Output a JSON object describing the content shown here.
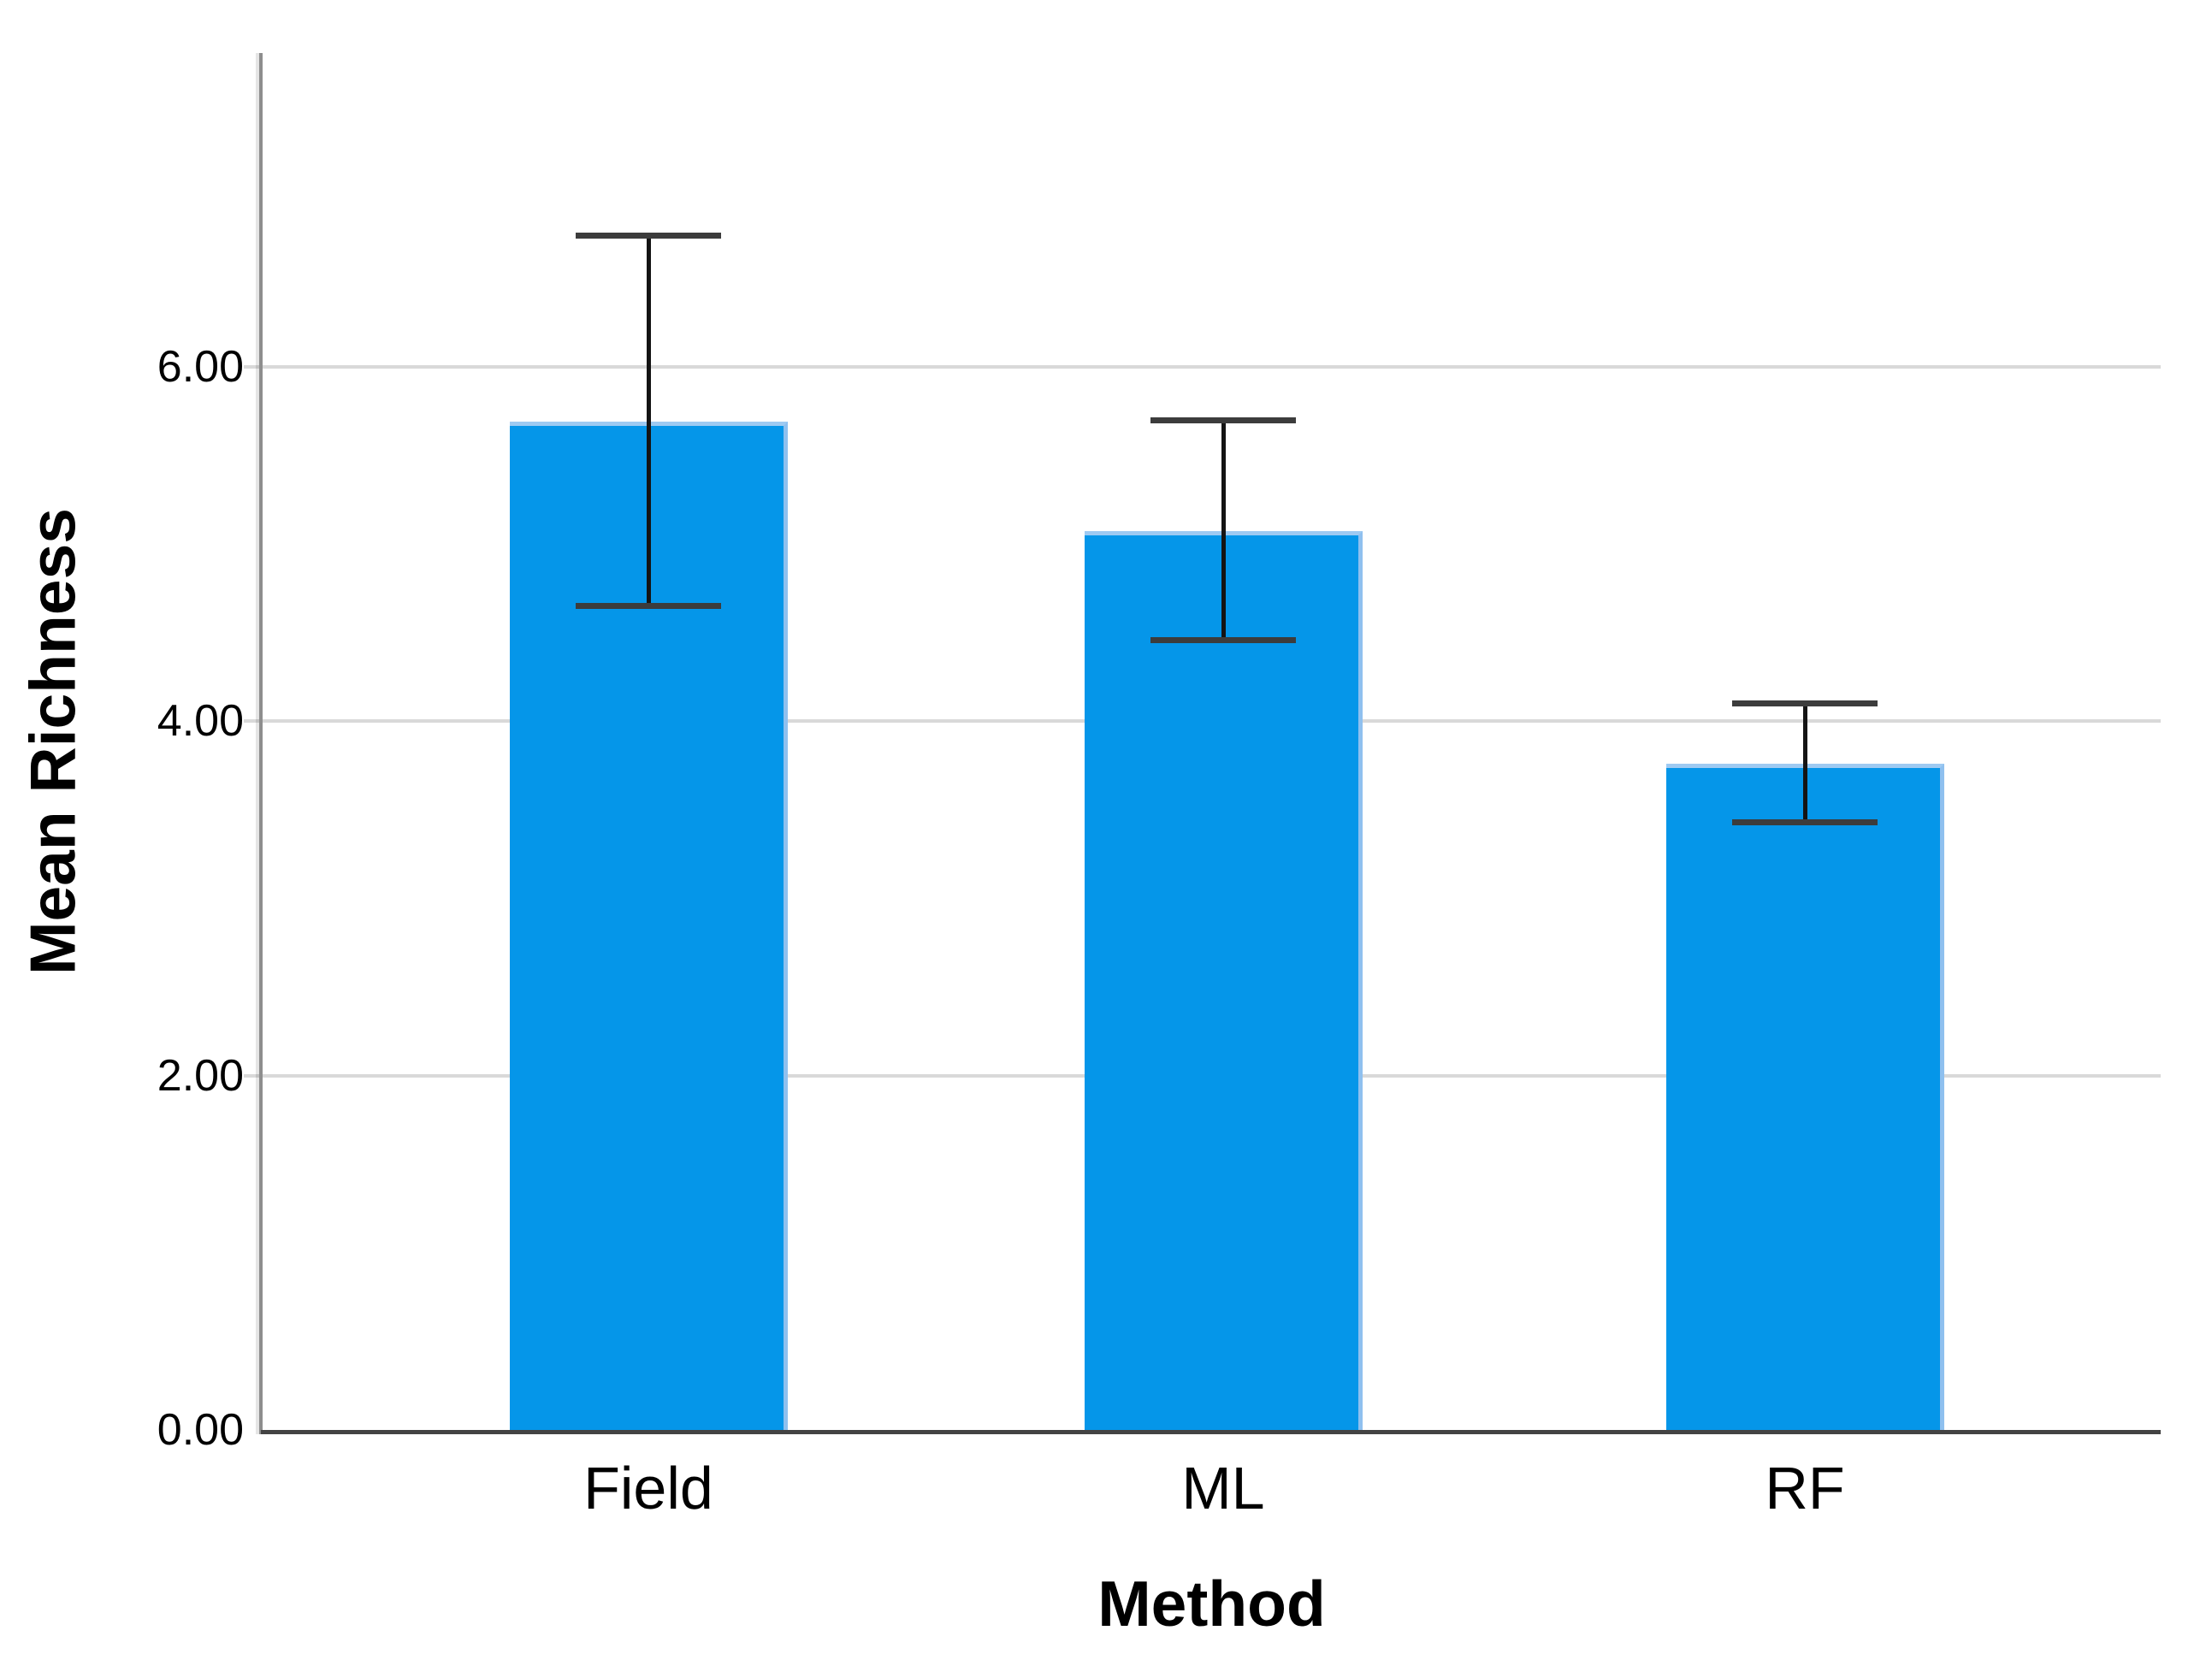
{
  "chart_data": {
    "type": "bar",
    "title": "",
    "xlabel": "Method",
    "ylabel": "Mean Richness",
    "categories": [
      "Field",
      "ML",
      "RF"
    ],
    "values": [
      5.69,
      5.07,
      3.76
    ],
    "error_bars": {
      "low": [
        4.65,
        4.46,
        3.43
      ],
      "high": [
        6.74,
        5.7,
        4.1
      ]
    },
    "y_ticks": [
      {
        "value": 0,
        "label": "0.00"
      },
      {
        "value": 2,
        "label": "2.00"
      },
      {
        "value": 4,
        "label": "4.00"
      },
      {
        "value": 6,
        "label": "6.00"
      }
    ],
    "ylim": [
      0,
      7.77
    ],
    "grid": true,
    "legend": false,
    "colors": {
      "bar_fill": "#0596e9",
      "bar_highlight_top": "#9ecaf2",
      "bar_highlight_right": "#8fc0ef",
      "gridline": "#d9d9d9",
      "y_axis": "#8e8e8e",
      "x_axis": "#434343",
      "error_line": "#141414",
      "error_cap": "#3c3c3c",
      "text": "#000000"
    }
  }
}
